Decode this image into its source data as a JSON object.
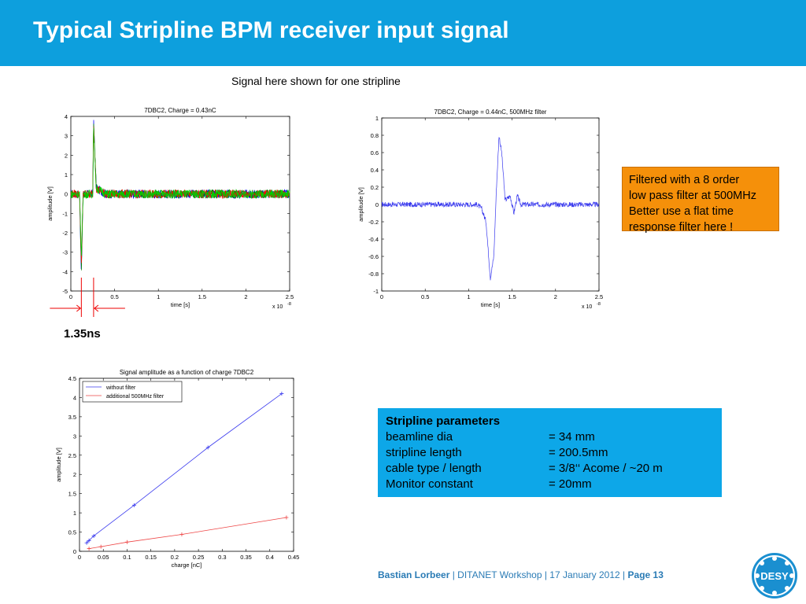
{
  "slide": {
    "title": "Typical Stripline BPM receiver input signal",
    "subtitle": "Signal here shown for one stripline",
    "delta_label": "1.35ns",
    "note_lines": [
      "Filtered with a 8 order",
      "low pass filter at 500MHz",
      "Better use a flat time",
      "response filter here !"
    ],
    "params": {
      "heading": "Stripline parameters",
      "rows": [
        {
          "key": "beamline dia",
          "value": "= 34 mm"
        },
        {
          "key": "stripline length",
          "value": "= 200.5mm"
        },
        {
          "key": "cable type / length",
          "value": "= 3/8‘‘ Acome / ~20 m"
        },
        {
          "key": "Monitor constant",
          "value": "= 20mm"
        }
      ]
    },
    "footer": {
      "author": "Bastian Lorbeer",
      "sep": " | ",
      "event": "DITANET Workshop | 17 January 2012",
      "page": "Page 13"
    },
    "logo_text": "DESY",
    "colors": {
      "title_bar": "#0d9fdd",
      "note": "#f5900a",
      "params_box": "#0da7e8",
      "blue_series": "#3a3aee",
      "red_series": "#ee4444"
    }
  },
  "chart_data": [
    {
      "type": "line",
      "title": "7DBC2, Charge = 0.43nC",
      "xlabel": "time [s]",
      "ylabel": "amplitude [V]",
      "x_exponent": "x 10",
      "x_exponent_power": "-8",
      "xlim": [
        0,
        2.5
      ],
      "ylim": [
        -5,
        4
      ],
      "xticks": [
        "0",
        "0.5",
        "1",
        "1.5",
        "2",
        "2.5"
      ],
      "yticks": [
        "-5",
        "-4",
        "-3",
        "-2",
        "-1",
        "0",
        "1",
        "2",
        "3",
        "4"
      ],
      "annotation": "1.35ns",
      "series": [
        {
          "color": "#0000ff",
          "points": [
            [
              0,
              0
            ],
            [
              0.1,
              0
            ],
            [
              0.12,
              -4.1
            ],
            [
              0.14,
              0
            ],
            [
              0.25,
              0
            ],
            [
              0.26,
              3.7
            ],
            [
              0.29,
              0.3
            ],
            [
              0.4,
              0
            ],
            [
              2.5,
              0
            ]
          ]
        },
        {
          "color": "#008000",
          "points": [
            [
              0,
              0
            ],
            [
              0.1,
              0
            ],
            [
              0.12,
              -4.0
            ],
            [
              0.14,
              0
            ],
            [
              0.25,
              0
            ],
            [
              0.26,
              3.8
            ],
            [
              0.29,
              0.3
            ],
            [
              0.4,
              0
            ],
            [
              2.5,
              0
            ]
          ]
        },
        {
          "color": "#ff0000",
          "points": [
            [
              0,
              0
            ],
            [
              0.1,
              0
            ],
            [
              0.12,
              -3.6
            ],
            [
              0.14,
              0
            ],
            [
              0.25,
              0
            ],
            [
              0.26,
              3.5
            ],
            [
              0.29,
              0.3
            ],
            [
              0.4,
              0
            ],
            [
              2.5,
              0
            ]
          ]
        },
        {
          "color": "#00cc00",
          "points": [
            [
              0,
              0
            ],
            [
              0.1,
              0
            ],
            [
              0.12,
              -3.2
            ],
            [
              0.14,
              0
            ],
            [
              0.25,
              0
            ],
            [
              0.26,
              3.3
            ],
            [
              0.29,
              0.3
            ],
            [
              0.4,
              0
            ],
            [
              2.5,
              0
            ]
          ]
        }
      ]
    },
    {
      "type": "line",
      "title": "7DBC2, Charge = 0.44nC, 500MHz filter",
      "xlabel": "time [s]",
      "ylabel": "amplitude [V]",
      "x_exponent": "x 10",
      "x_exponent_power": "-8",
      "xlim": [
        0,
        2.5
      ],
      "ylim": [
        -1,
        1
      ],
      "xticks": [
        "0",
        "0.5",
        "1",
        "1.5",
        "2",
        "2.5"
      ],
      "yticks": [
        "-1",
        "-0.8",
        "-0.6",
        "-0.4",
        "-0.2",
        "0",
        "0.2",
        "0.4",
        "0.6",
        "0.8",
        "1"
      ],
      "series": [
        {
          "color": "#3a3aee",
          "points": [
            [
              0,
              0
            ],
            [
              1.1,
              0
            ],
            [
              1.15,
              -0.05
            ],
            [
              1.2,
              -0.2
            ],
            [
              1.25,
              -0.85
            ],
            [
              1.29,
              -0.6
            ],
            [
              1.32,
              0.2
            ],
            [
              1.35,
              0.8
            ],
            [
              1.38,
              0.6
            ],
            [
              1.42,
              0.05
            ],
            [
              1.48,
              0.1
            ],
            [
              1.52,
              -0.1
            ],
            [
              1.56,
              0.1
            ],
            [
              1.6,
              0
            ],
            [
              2.5,
              0
            ]
          ]
        }
      ]
    },
    {
      "type": "line",
      "title": "Signal amplitude as a function of charge 7DBC2",
      "xlabel": "charge [nC]",
      "ylabel": "amplitude [V]",
      "xlim": [
        0,
        0.45
      ],
      "ylim": [
        0,
        4.5
      ],
      "xticks": [
        "0",
        "0.05",
        "0.1",
        "0.15",
        "0.2",
        "0.25",
        "0.3",
        "0.35",
        "0.4",
        "0.45"
      ],
      "yticks": [
        "0",
        "0.5",
        "1",
        "1.5",
        "2",
        "2.5",
        "3",
        "3.5",
        "4",
        "4.5"
      ],
      "legend": "top-left",
      "series": [
        {
          "name": "without filter",
          "color": "#3a3aee",
          "x": [
            0.015,
            0.02,
            0.03,
            0.115,
            0.27,
            0.425
          ],
          "y": [
            0.22,
            0.28,
            0.4,
            1.2,
            2.7,
            4.1
          ]
        },
        {
          "name": "additional 500MHz filter",
          "color": "#ee4444",
          "x": [
            0.02,
            0.045,
            0.1,
            0.215,
            0.435
          ],
          "y": [
            0.07,
            0.12,
            0.24,
            0.44,
            0.88
          ]
        }
      ]
    }
  ]
}
